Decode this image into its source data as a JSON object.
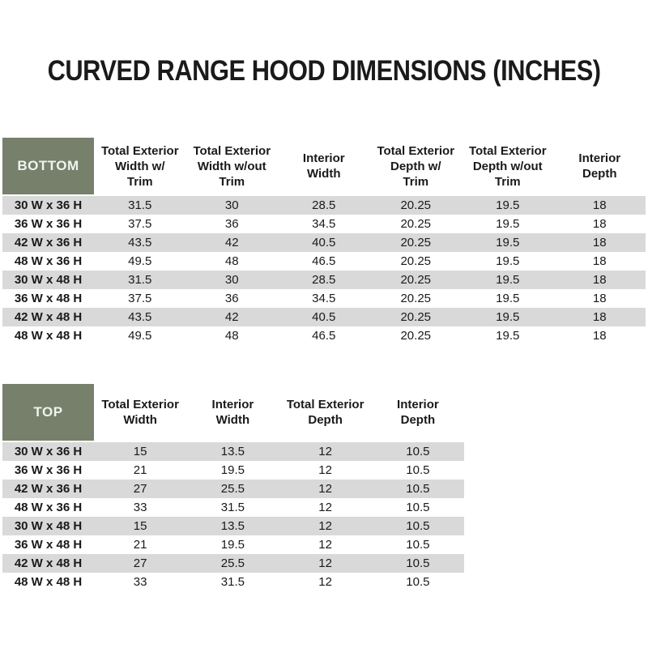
{
  "title": "CURVED RANGE HOOD DIMENSIONS (INCHES)",
  "colors": {
    "header_green": "#76806B",
    "stripe_gray": "#D9D9D9",
    "text": "#1A1A1A",
    "corner_text": "#F2F2EF"
  },
  "bottom_table": {
    "corner_label": "BOTTOM",
    "columns": [
      "Total Exterior\nWidth w/\nTrim",
      "Total Exterior\nWidth w/out\nTrim",
      "Interior\nWidth",
      "Total Exterior\nDepth w/\nTrim",
      "Total Exterior\nDepth w/out\nTrim",
      "Interior\nDepth"
    ],
    "rows": [
      {
        "label": "30 W x 36 H",
        "values": [
          "31.5",
          "30",
          "28.5",
          "20.25",
          "19.5",
          "18"
        ]
      },
      {
        "label": "36 W x 36 H",
        "values": [
          "37.5",
          "36",
          "34.5",
          "20.25",
          "19.5",
          "18"
        ]
      },
      {
        "label": "42 W x 36 H",
        "values": [
          "43.5",
          "42",
          "40.5",
          "20.25",
          "19.5",
          "18"
        ]
      },
      {
        "label": "48 W x 36 H",
        "values": [
          "49.5",
          "48",
          "46.5",
          "20.25",
          "19.5",
          "18"
        ]
      },
      {
        "label": "30 W x 48 H",
        "values": [
          "31.5",
          "30",
          "28.5",
          "20.25",
          "19.5",
          "18"
        ]
      },
      {
        "label": "36 W x 48 H",
        "values": [
          "37.5",
          "36",
          "34.5",
          "20.25",
          "19.5",
          "18"
        ]
      },
      {
        "label": "42 W x 48 H",
        "values": [
          "43.5",
          "42",
          "40.5",
          "20.25",
          "19.5",
          "18"
        ]
      },
      {
        "label": "48 W x 48 H",
        "values": [
          "49.5",
          "48",
          "46.5",
          "20.25",
          "19.5",
          "18"
        ]
      }
    ]
  },
  "top_table": {
    "corner_label": "TOP",
    "columns": [
      "Total Exterior\nWidth",
      "Interior\nWidth",
      "Total Exterior\nDepth",
      "Interior\nDepth"
    ],
    "rows": [
      {
        "label": "30 W x 36 H",
        "values": [
          "15",
          "13.5",
          "12",
          "10.5"
        ]
      },
      {
        "label": "36 W x 36 H",
        "values": [
          "21",
          "19.5",
          "12",
          "10.5"
        ]
      },
      {
        "label": "42 W x 36 H",
        "values": [
          "27",
          "25.5",
          "12",
          "10.5"
        ]
      },
      {
        "label": "48 W x 36 H",
        "values": [
          "33",
          "31.5",
          "12",
          "10.5"
        ]
      },
      {
        "label": "30 W x 48 H",
        "values": [
          "15",
          "13.5",
          "12",
          "10.5"
        ]
      },
      {
        "label": "36 W x 48 H",
        "values": [
          "21",
          "19.5",
          "12",
          "10.5"
        ]
      },
      {
        "label": "42 W x 48 H",
        "values": [
          "27",
          "25.5",
          "12",
          "10.5"
        ]
      },
      {
        "label": "48 W x 48 H",
        "values": [
          "33",
          "31.5",
          "12",
          "10.5"
        ]
      }
    ]
  }
}
